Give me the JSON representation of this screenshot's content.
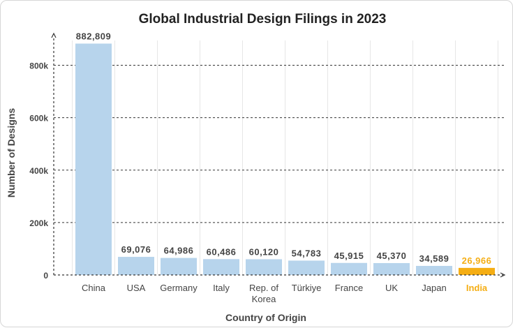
{
  "chart_data": {
    "type": "bar",
    "title": "Global Industrial Design Filings in 2023",
    "xlabel": "Country of Origin",
    "ylabel": "Number of Designs",
    "categories": [
      "China",
      "USA",
      "Germany",
      "Italy",
      "Rep. of Korea",
      "Türkiye",
      "France",
      "UK",
      "Japan",
      "India"
    ],
    "values": [
      882809,
      69076,
      64986,
      60486,
      60120,
      54783,
      45915,
      45370,
      34589,
      26966
    ],
    "value_labels": [
      "882,809",
      "69,076",
      "64,986",
      "60,486",
      "60,120",
      "54,783",
      "45,915",
      "45,370",
      "34,589",
      "26,966"
    ],
    "ylim": [
      0,
      900000
    ],
    "yticks": [
      0,
      200000,
      400000,
      600000,
      800000
    ],
    "ytick_labels": [
      "0",
      "200k",
      "400k",
      "600k",
      "800k"
    ],
    "grid": true,
    "highlight_category": "India",
    "colors": {
      "bar": "#b7d4ec",
      "highlight": "#f5ae14",
      "text": "#444444",
      "grid": "#e6e6e6",
      "axis": "#333333"
    }
  }
}
